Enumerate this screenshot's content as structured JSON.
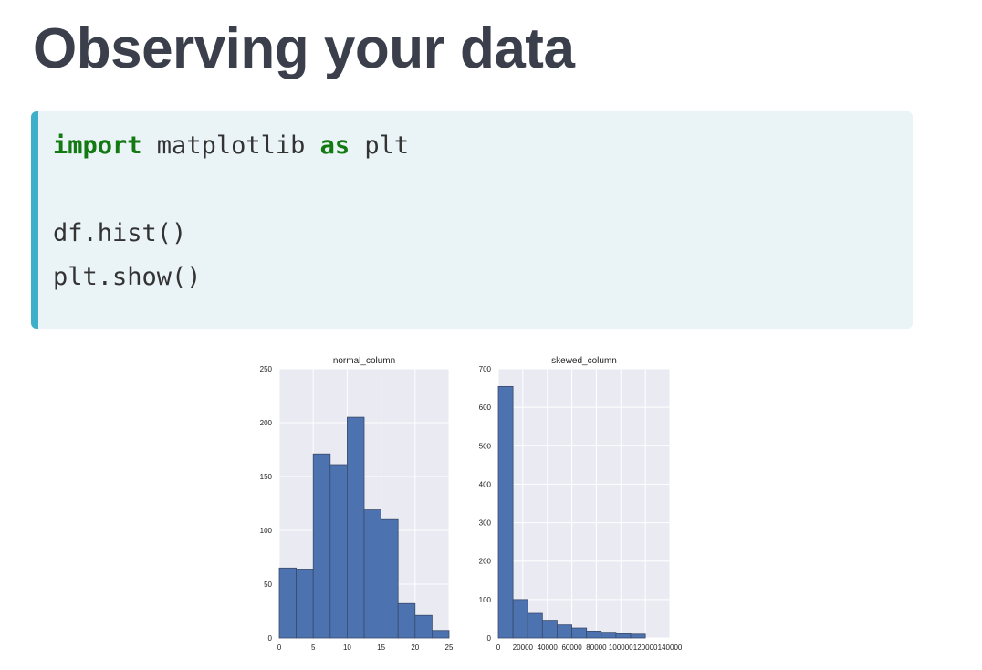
{
  "slide": {
    "title": "Observing your data"
  },
  "code": {
    "line1": {
      "kw1": "import",
      "mid": " matplotlib ",
      "kw2": "as",
      "end": " plt"
    },
    "line3": "df.hist()",
    "line4": "plt.show()"
  },
  "colors": {
    "bar": "#4c72b0",
    "panel_bg": "#eaeaf2",
    "code_bg": "#eaf3f6",
    "code_accent": "#3eafc8",
    "keyword": "#137a13"
  },
  "chart_data": [
    {
      "type": "bar",
      "title": "normal_column",
      "xlim": [
        0,
        25
      ],
      "ylim": [
        0,
        250
      ],
      "xticks": [
        "0",
        "5",
        "10",
        "15",
        "20",
        "25"
      ],
      "yticks": [
        "0",
        "50",
        "100",
        "150",
        "200",
        "250"
      ],
      "bin_edges": [
        0,
        2.5,
        5,
        7.5,
        10,
        12.5,
        15,
        17.5,
        20,
        22.5,
        25
      ],
      "values": [
        65,
        64,
        171,
        161,
        205,
        119,
        110,
        32,
        21,
        7
      ]
    },
    {
      "type": "bar",
      "title": "skewed_column",
      "xlim": [
        0,
        140000
      ],
      "ylim": [
        0,
        700
      ],
      "xticks": [
        "0",
        "20000",
        "40000",
        "60000",
        "80000",
        "100000",
        "120000",
        "140000"
      ],
      "yticks": [
        "0",
        "100",
        "200",
        "300",
        "400",
        "500",
        "600",
        "700"
      ],
      "bin_edges": [
        0,
        12000,
        24000,
        36000,
        48000,
        60000,
        72000,
        84000,
        96000,
        108000,
        120000
      ],
      "values": [
        654,
        100,
        64,
        46,
        34,
        26,
        18,
        15,
        11,
        10
      ]
    }
  ]
}
